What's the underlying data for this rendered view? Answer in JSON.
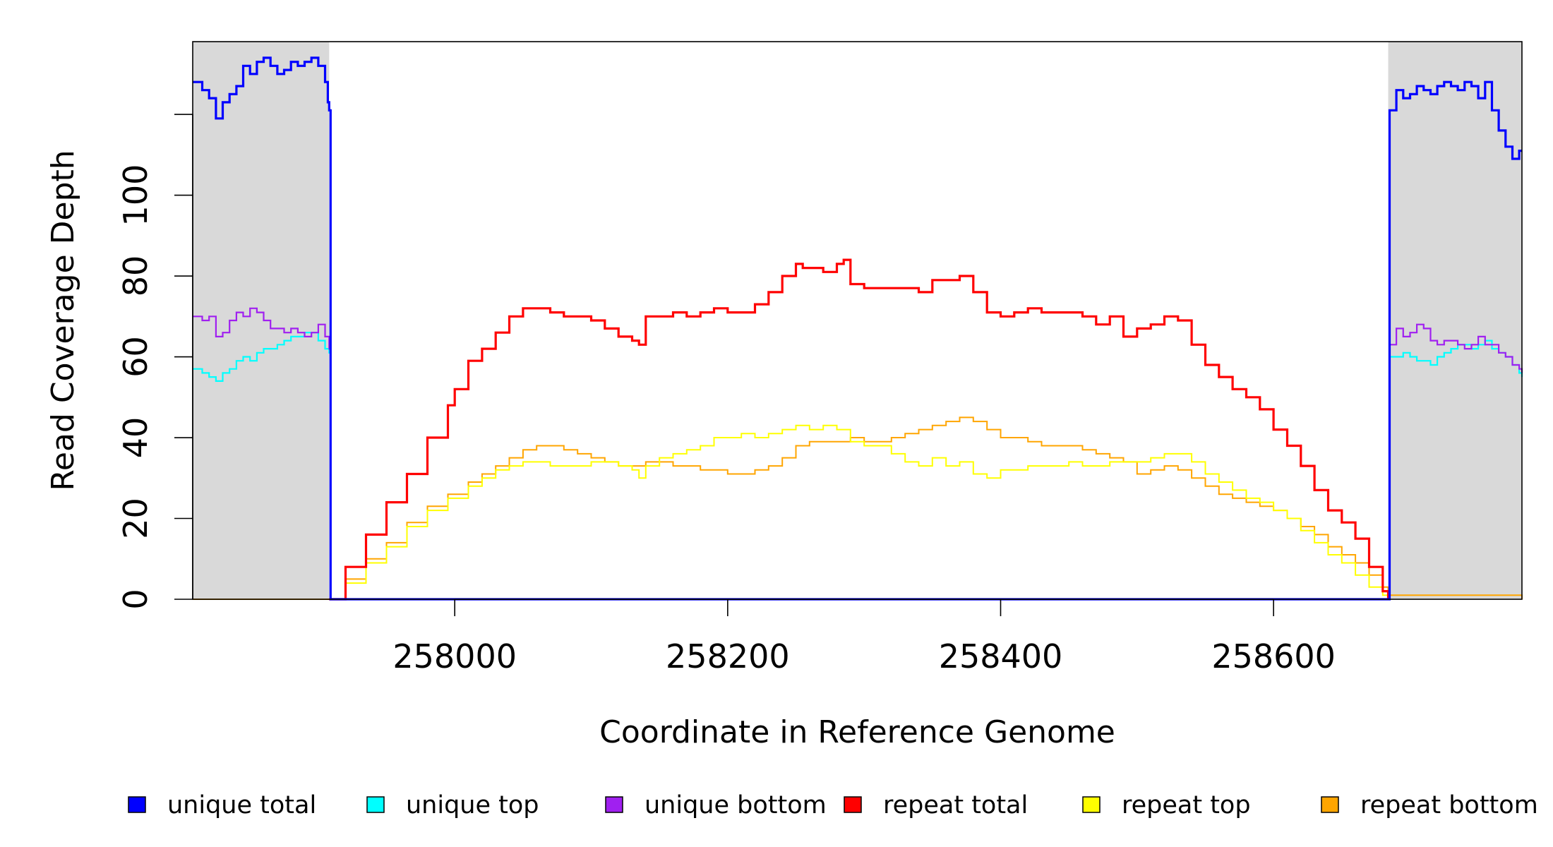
{
  "chart_data": {
    "type": "line",
    "xlabel": "Coordinate in Reference Genome",
    "ylabel": "Read Coverage Depth",
    "xlim": [
      257808,
      258782
    ],
    "ylim": [
      0,
      138
    ],
    "x_ticks": [
      258000,
      258200,
      258400,
      258600
    ],
    "x_tick_labels": [
      "258000",
      "258200",
      "258400",
      "258600"
    ],
    "y_ticks": [
      0,
      20,
      40,
      60,
      80,
      100,
      120
    ],
    "y_tick_labels": [
      "0",
      "20",
      "40",
      "60",
      "80",
      "100",
      ""
    ],
    "grid": false,
    "shaded_regions": [
      {
        "x0": 257808,
        "x1": 257908,
        "color": "#d9d9d9"
      },
      {
        "x0": 258684,
        "x1": 258782,
        "color": "#d9d9d9"
      }
    ],
    "series": [
      {
        "name": "unique total",
        "color": "#0000ff",
        "width": 3.2,
        "x": [
          257808,
          257815,
          257820,
          257825,
          257830,
          257835,
          257840,
          257845,
          257850,
          257855,
          257860,
          257865,
          257870,
          257875,
          257880,
          257885,
          257890,
          257895,
          257900,
          257905,
          257907,
          257908,
          257909,
          258684,
          258685,
          258690,
          258695,
          258700,
          258705,
          258710,
          258715,
          258720,
          258725,
          258730,
          258735,
          258740,
          258745,
          258750,
          258755,
          258760,
          258765,
          258770,
          258775,
          258780,
          258782
        ],
        "y": [
          128,
          126,
          124,
          119,
          123,
          125,
          127,
          132,
          130,
          133,
          134,
          132,
          130,
          131,
          133,
          132,
          133,
          134,
          132,
          128,
          123,
          121,
          0,
          0,
          121,
          126,
          124,
          125,
          127,
          126,
          125,
          127,
          128,
          127,
          126,
          128,
          127,
          124,
          128,
          121,
          116,
          112,
          109,
          111,
          111
        ]
      },
      {
        "name": "unique top",
        "color": "#00ffff",
        "width": 2.2,
        "x": [
          257808,
          257815,
          257820,
          257825,
          257830,
          257835,
          257840,
          257845,
          257850,
          257855,
          257860,
          257865,
          257870,
          257875,
          257880,
          257885,
          257890,
          257895,
          257900,
          257905,
          257908,
          257909,
          258684,
          258685,
          258690,
          258695,
          258700,
          258705,
          258710,
          258715,
          258720,
          258725,
          258730,
          258735,
          258740,
          258745,
          258750,
          258755,
          258760,
          258765,
          258770,
          258775,
          258780,
          258782
        ],
        "y": [
          57,
          56,
          55,
          54,
          56,
          57,
          59,
          60,
          59,
          61,
          62,
          62,
          63,
          64,
          65,
          65,
          66,
          66,
          64,
          62,
          61,
          0,
          0,
          60,
          60,
          61,
          60,
          59,
          59,
          58,
          60,
          61,
          62,
          63,
          63,
          62,
          63,
          64,
          62,
          61,
          60,
          58,
          56,
          55
        ]
      },
      {
        "name": "unique bottom",
        "color": "#a020f0",
        "width": 2.2,
        "x": [
          257808,
          257815,
          257820,
          257825,
          257830,
          257835,
          257840,
          257845,
          257850,
          257855,
          257860,
          257865,
          257870,
          257875,
          257880,
          257885,
          257890,
          257895,
          257900,
          257905,
          257908,
          257909,
          258684,
          258685,
          258690,
          258695,
          258700,
          258705,
          258710,
          258715,
          258720,
          258725,
          258730,
          258735,
          258740,
          258745,
          258750,
          258755,
          258760,
          258765,
          258770,
          258775,
          258780,
          258782
        ],
        "y": [
          70,
          69,
          70,
          65,
          66,
          69,
          71,
          70,
          72,
          71,
          69,
          67,
          67,
          66,
          67,
          66,
          65,
          66,
          68,
          65,
          62,
          0,
          0,
          63,
          67,
          65,
          66,
          68,
          67,
          64,
          63,
          64,
          64,
          63,
          62,
          63,
          65,
          63,
          63,
          61,
          60,
          58,
          57,
          56
        ]
      },
      {
        "name": "repeat total",
        "color": "#ff0000",
        "width": 3.2,
        "x": [
          257908,
          257920,
          257935,
          257950,
          257965,
          257980,
          257995,
          258000,
          258010,
          258020,
          258030,
          258040,
          258050,
          258060,
          258070,
          258080,
          258090,
          258100,
          258110,
          258120,
          258130,
          258135,
          258140,
          258150,
          258160,
          258170,
          258180,
          258190,
          258200,
          258210,
          258220,
          258230,
          258240,
          258250,
          258255,
          258260,
          258270,
          258280,
          258285,
          258290,
          258300,
          258310,
          258320,
          258330,
          258340,
          258350,
          258360,
          258370,
          258380,
          258390,
          258400,
          258410,
          258420,
          258430,
          258440,
          258450,
          258460,
          258470,
          258480,
          258490,
          258500,
          258510,
          258520,
          258530,
          258540,
          258550,
          258560,
          258570,
          258580,
          258590,
          258600,
          258610,
          258620,
          258630,
          258640,
          258650,
          258660,
          258670,
          258680,
          258684
        ],
        "y": [
          0,
          8,
          16,
          24,
          31,
          40,
          48,
          52,
          59,
          62,
          66,
          70,
          72,
          72,
          71,
          70,
          70,
          69,
          67,
          65,
          64,
          63,
          70,
          70,
          71,
          70,
          71,
          72,
          71,
          71,
          73,
          76,
          80,
          83,
          82,
          82,
          81,
          83,
          84,
          78,
          77,
          77,
          77,
          77,
          76,
          79,
          79,
          80,
          76,
          71,
          70,
          71,
          72,
          71,
          71,
          71,
          70,
          68,
          70,
          65,
          67,
          68,
          70,
          69,
          63,
          58,
          55,
          52,
          50,
          47,
          42,
          38,
          33,
          27,
          22,
          19,
          15,
          8,
          2,
          0
        ]
      },
      {
        "name": "repeat top",
        "color": "#ffff00",
        "width": 2.0,
        "x": [
          257908,
          257920,
          257935,
          257950,
          257965,
          257980,
          257995,
          258010,
          258020,
          258030,
          258040,
          258050,
          258060,
          258070,
          258080,
          258090,
          258100,
          258110,
          258120,
          258130,
          258135,
          258140,
          258150,
          258160,
          258170,
          258180,
          258190,
          258200,
          258210,
          258220,
          258230,
          258240,
          258250,
          258260,
          258270,
          258280,
          258290,
          258300,
          258310,
          258320,
          258330,
          258340,
          258350,
          258360,
          258370,
          258380,
          258390,
          258400,
          258410,
          258420,
          258430,
          258440,
          258450,
          258460,
          258470,
          258480,
          258490,
          258500,
          258510,
          258520,
          258530,
          258540,
          258550,
          258560,
          258570,
          258580,
          258590,
          258600,
          258610,
          258620,
          258630,
          258640,
          258650,
          258660,
          258670,
          258680,
          258684
        ],
        "y": [
          0,
          4,
          9,
          13,
          18,
          22,
          25,
          28,
          30,
          32,
          33,
          34,
          34,
          33,
          33,
          33,
          34,
          34,
          33,
          32,
          30,
          33,
          35,
          36,
          37,
          38,
          40,
          40,
          41,
          40,
          41,
          42,
          43,
          42,
          43,
          42,
          39,
          38,
          38,
          36,
          34,
          33,
          35,
          33,
          34,
          31,
          30,
          32,
          32,
          33,
          33,
          33,
          34,
          33,
          33,
          34,
          34,
          34,
          35,
          36,
          36,
          34,
          31,
          29,
          27,
          25,
          24,
          22,
          20,
          17,
          14,
          11,
          9,
          6,
          3,
          1,
          0
        ]
      },
      {
        "name": "repeat bottom",
        "color": "#ffa500",
        "width": 2.0,
        "x": [
          257808,
          257908,
          257920,
          257935,
          257950,
          257965,
          257980,
          257995,
          258010,
          258020,
          258030,
          258040,
          258050,
          258060,
          258070,
          258080,
          258090,
          258100,
          258110,
          258120,
          258130,
          258140,
          258150,
          258160,
          258170,
          258180,
          258190,
          258200,
          258210,
          258220,
          258230,
          258240,
          258250,
          258260,
          258270,
          258280,
          258290,
          258300,
          258310,
          258320,
          258330,
          258340,
          258350,
          258360,
          258370,
          258380,
          258390,
          258400,
          258410,
          258420,
          258430,
          258440,
          258450,
          258460,
          258470,
          258480,
          258490,
          258500,
          258510,
          258520,
          258530,
          258540,
          258550,
          258560,
          258570,
          258580,
          258590,
          258600,
          258610,
          258620,
          258630,
          258640,
          258650,
          258660,
          258670,
          258680,
          258684,
          258782
        ],
        "y": [
          0,
          0,
          5,
          10,
          14,
          19,
          23,
          26,
          29,
          31,
          33,
          35,
          37,
          38,
          38,
          37,
          36,
          35,
          34,
          33,
          33,
          34,
          34,
          33,
          33,
          32,
          32,
          31,
          31,
          32,
          33,
          35,
          38,
          39,
          39,
          39,
          40,
          39,
          39,
          40,
          41,
          42,
          43,
          44,
          45,
          44,
          42,
          40,
          40,
          39,
          38,
          38,
          38,
          37,
          36,
          35,
          34,
          31,
          32,
          33,
          32,
          30,
          28,
          26,
          25,
          24,
          23,
          22,
          20,
          18,
          16,
          13,
          11,
          9,
          6,
          3,
          1,
          0
        ]
      }
    ]
  },
  "legend": {
    "items": [
      {
        "label": "unique total",
        "color": "#0000ff"
      },
      {
        "label": "unique top",
        "color": "#00ffff"
      },
      {
        "label": "unique bottom",
        "color": "#a020f0"
      },
      {
        "label": "repeat total",
        "color": "#ff0000"
      },
      {
        "label": "repeat top",
        "color": "#ffff00"
      },
      {
        "label": "repeat bottom",
        "color": "#ffa500"
      }
    ]
  }
}
